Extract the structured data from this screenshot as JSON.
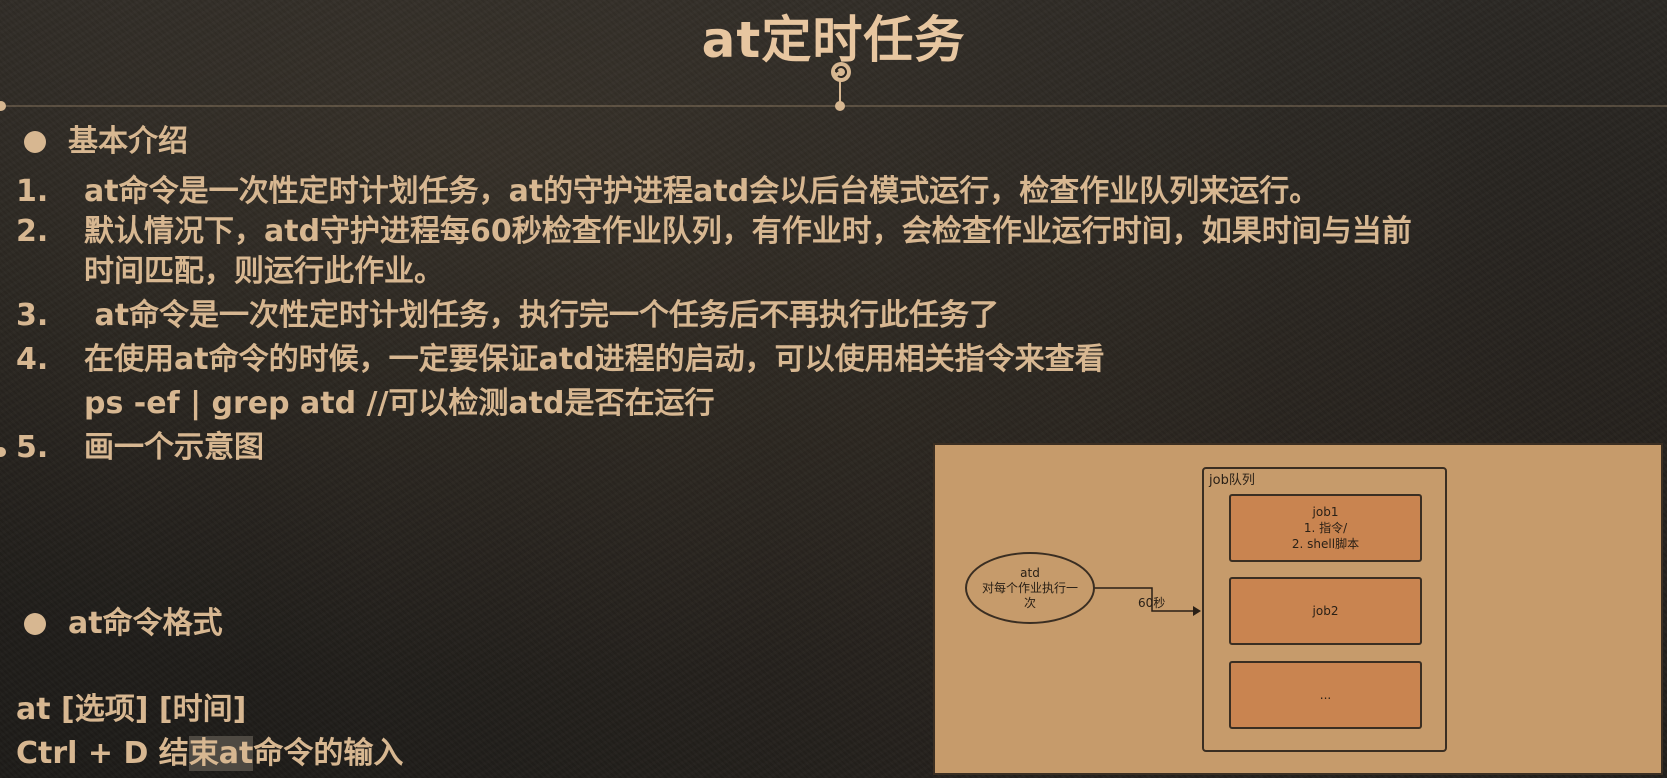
{
  "title": "at定时任务",
  "section1": {
    "heading": "基本介绍",
    "items": [
      {
        "num": "1.",
        "text": "at命令是一次性定时计划任务，at的守护进程atd会以后台模式运行，检查作业队列来运行。"
      },
      {
        "num": "2.",
        "text": "默认情况下，atd守护进程每60秒检查作业队列，有作业时，会检查作业运行时间，如果时间与当前",
        "text2": "时间匹配，则运行此作业。"
      },
      {
        "num": "3.",
        "text": " at命令是一次性定时计划任务，执行完一个任务后不再执行此任务了"
      },
      {
        "num": "4.",
        "text": "在使用at命令的时候，一定要保证atd进程的启动，可以使用相关指令来查看",
        "text2": "ps -ef  | grep atd //可以检测atd是否在运行"
      },
      {
        "num": "5.",
        "text": "画一个示意图"
      }
    ]
  },
  "section2": {
    "heading": "at命令格式",
    "format_line": "at [选项] [时间]",
    "ctrl_line_pre": "Ctrl + D  结",
    "ctrl_line_hl": "束at",
    "ctrl_line_post": "命令的输入"
  },
  "diagram": {
    "queue_label": "job队列",
    "atd_title": "atd",
    "atd_line1": "对每个作业执行一",
    "atd_line2": "次",
    "arrow_label": "60秒",
    "jobs": [
      {
        "title": "job1",
        "line1": "1. 指令/",
        "line2": "2. shell脚本"
      },
      {
        "title": "job2"
      },
      {
        "title": "..."
      }
    ]
  },
  "colors": {
    "text": "#d7b791",
    "title": "#e7c6a0",
    "diagram_bg": "#c69b6b",
    "job_bg": "#c98450"
  }
}
